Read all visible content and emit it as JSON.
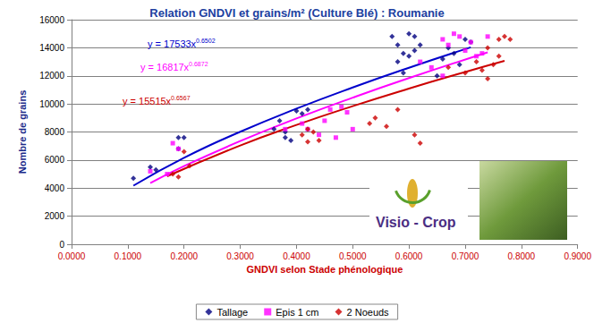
{
  "chart_data": {
    "type": "scatter",
    "title": "Relation GNDVI et grains/m² (Culture Blé) : Roumanie",
    "x_label": "GNDVI selon Stade phénologique",
    "y_label": "Nombre de grains",
    "logo": "Visio - Crop",
    "xlim": [
      0,
      0.9
    ],
    "xticks": [
      {
        "value": 0,
        "label": "0.0000"
      },
      {
        "value": 0.1,
        "label": "0.1000"
      },
      {
        "value": 0.2,
        "label": "0.2000"
      },
      {
        "value": 0.3,
        "label": "0.3000"
      },
      {
        "value": 0.4,
        "label": "0.4000"
      },
      {
        "value": 0.5,
        "label": "0.5000"
      },
      {
        "value": 0.6,
        "label": "0.6000"
      },
      {
        "value": 0.7,
        "label": "0.7000"
      },
      {
        "value": 0.8,
        "label": "0.8000"
      },
      {
        "value": 0.9,
        "label": "0.9000"
      }
    ],
    "ylim": [
      0,
      16000
    ],
    "yticks": [
      0,
      2000,
      4000,
      6000,
      8000,
      10000,
      12000,
      14000,
      16000
    ],
    "grid": true,
    "legend": "bottom",
    "series": [
      {
        "name": "Tallage",
        "color": "#000080",
        "marker": "diamond",
        "x": [
          0.11,
          0.14,
          0.15,
          0.19,
          0.19,
          0.2,
          0.36,
          0.37,
          0.38,
          0.39,
          0.4,
          0.41,
          0.42,
          0.38,
          0.57,
          0.58,
          0.59,
          0.6,
          0.61,
          0.6,
          0.62,
          0.58,
          0.59,
          0.61,
          0.65,
          0.66,
          0.68,
          0.7,
          0.71,
          0.69,
          0.67
        ],
        "values": [
          4700,
          5500,
          5300,
          7600,
          6800,
          7600,
          8200,
          8800,
          7600,
          7400,
          9500,
          9300,
          9600,
          8000,
          14800,
          14200,
          13600,
          15000,
          14800,
          13400,
          14200,
          13000,
          12200,
          13800,
          12000,
          13200,
          13600,
          14600,
          14400,
          12800,
          14000
        ],
        "trend": {
          "label": "y = 17533x",
          "exponent": "0.6502",
          "color": "#0000cc",
          "x": [
            0.11,
            0.2,
            0.3,
            0.4,
            0.5,
            0.6,
            0.71
          ],
          "values": [
            4175,
            6158,
            8014,
            9663,
            11172,
            12578,
            14034
          ]
        }
      },
      {
        "name": "Epis 1 cm",
        "color": "#ff00ff",
        "marker": "rect",
        "x": [
          0.14,
          0.17,
          0.18,
          0.19,
          0.38,
          0.41,
          0.42,
          0.44,
          0.45,
          0.46,
          0.48,
          0.49,
          0.47,
          0.5,
          0.62,
          0.64,
          0.66,
          0.67,
          0.68,
          0.69,
          0.7,
          0.71,
          0.72,
          0.73,
          0.74,
          0.66
        ],
        "values": [
          5200,
          5000,
          7200,
          6800,
          8200,
          8600,
          8200,
          7800,
          8800,
          9600,
          9800,
          9400,
          7600,
          8200,
          13000,
          12600,
          14600,
          14200,
          15000,
          14800,
          13800,
          14400,
          13400,
          13600,
          14800,
          12000
        ],
        "trend": {
          "label": "y = 16817x",
          "exponent": "0.6872",
          "color": "#ff00ff",
          "x": [
            0.14,
            0.2,
            0.3,
            0.4,
            0.5,
            0.6,
            0.74
          ],
          "values": [
            4356,
            5565,
            7352,
            8960,
            10445,
            11839,
            13674
          ]
        }
      },
      {
        "name": "2 Noeuds",
        "color": "#cc0000",
        "marker": "diamond",
        "x": [
          0.18,
          0.19,
          0.2,
          0.21,
          0.41,
          0.42,
          0.43,
          0.44,
          0.42,
          0.53,
          0.54,
          0.56,
          0.58,
          0.61,
          0.62,
          0.67,
          0.7,
          0.72,
          0.73,
          0.74,
          0.75,
          0.76,
          0.77,
          0.78,
          0.76,
          0.74
        ],
        "values": [
          5000,
          4800,
          6600,
          5600,
          7800,
          8200,
          8000,
          7400,
          7300,
          8600,
          9000,
          8400,
          9600,
          7800,
          7200,
          12600,
          12200,
          13000,
          12400,
          14000,
          12800,
          14600,
          14800,
          14600,
          13400,
          11800
        ],
        "trend": {
          "label": "y = 15515x",
          "exponent": "0.6567",
          "color": "#cc0000",
          "x": [
            0.17,
            0.3,
            0.4,
            0.5,
            0.6,
            0.7,
            0.77
          ],
          "values": [
            4847,
            7036,
            8501,
            9843,
            11093,
            12275,
            13068
          ]
        }
      }
    ]
  }
}
